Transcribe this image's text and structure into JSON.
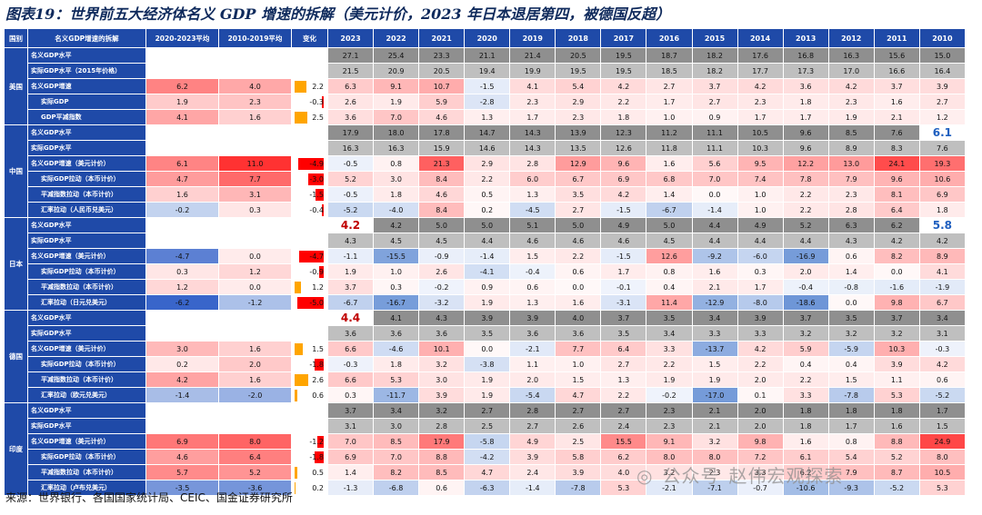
{
  "title": "图表19：世界前五大经济体名义 GDP 增速的拆解（美元计价，2023 年日本退居第四，被德国反超）",
  "source": "来源：世界银行、各国国家统计局、CEIC、国金证券研究所",
  "watermark": {
    "icon": "wechat-icon",
    "a": "公众号",
    "b": "赵伟宏观探索"
  },
  "header": {
    "country": "国别",
    "indicator": "名义GDP增速的拆解",
    "avg2020": "2020-2023平均",
    "avg2010": "2010-2019平均",
    "change": "变化",
    "years": [
      "2023",
      "2022",
      "2021",
      "2020",
      "2019",
      "2018",
      "2017",
      "2016",
      "2015",
      "2014",
      "2013",
      "2012",
      "2011",
      "2010"
    ]
  },
  "colors": {
    "red": "#ff0000",
    "orange": "#ffa500",
    "blue": "#1f4aa8",
    "lightgray": "#bfbfbf",
    "darkgray": "#8f8f8f"
  },
  "sections": [
    {
      "country": "美国",
      "rows": [
        {
          "label": "名义GDP水平",
          "avg2020": "",
          "avg2010": "",
          "change": "",
          "vals": [
            "27.1",
            "25.4",
            "23.3",
            "21.1",
            "21.4",
            "20.5",
            "19.5",
            "18.7",
            "18.2",
            "17.6",
            "16.8",
            "16.3",
            "15.6",
            "15.0"
          ]
        },
        {
          "label": "实际GDP水平（2015年价格）",
          "avg2020": "",
          "avg2010": "",
          "change": "",
          "vals": [
            "21.5",
            "20.9",
            "20.5",
            "19.4",
            "19.9",
            "19.5",
            "19.5",
            "18.5",
            "18.2",
            "17.7",
            "17.3",
            "17.0",
            "16.6",
            "16.4"
          ]
        },
        {
          "label": "名义GDP增速",
          "avg2020": "6.2",
          "avg2010": "4.0",
          "change": "2.2",
          "vals": [
            "6.3",
            "9.1",
            "10.7",
            "-1.5",
            "4.1",
            "5.4",
            "4.2",
            "2.7",
            "3.7",
            "4.2",
            "3.6",
            "4.2",
            "3.7",
            "3.9"
          ]
        },
        {
          "label": "实际GDP",
          "avg2020": "1.9",
          "avg2010": "2.3",
          "change": "-0.3",
          "vals": [
            "2.6",
            "1.9",
            "5.9",
            "-2.8",
            "2.3",
            "2.9",
            "2.2",
            "1.7",
            "2.7",
            "2.3",
            "1.8",
            "2.3",
            "1.6",
            "2.7"
          ]
        },
        {
          "label": "GDP平减指数",
          "avg2020": "4.1",
          "avg2010": "1.6",
          "change": "2.5",
          "vals": [
            "3.6",
            "7.0",
            "4.6",
            "1.3",
            "1.7",
            "2.3",
            "1.8",
            "1.0",
            "0.9",
            "1.7",
            "1.7",
            "1.9",
            "2.1",
            "1.2"
          ]
        }
      ]
    },
    {
      "country": "中国",
      "rows": [
        {
          "label": "名义GDP水平",
          "avg2020": "",
          "avg2010": "",
          "change": "",
          "vals": [
            "17.9",
            "18.0",
            "17.8",
            "14.7",
            "14.3",
            "13.9",
            "12.3",
            "11.2",
            "11.1",
            "10.5",
            "9.6",
            "8.5",
            "7.6",
            "6.1"
          ]
        },
        {
          "label": "实际GDP水平",
          "avg2020": "",
          "avg2010": "",
          "change": "",
          "vals": [
            "16.3",
            "16.3",
            "15.9",
            "14.6",
            "14.3",
            "13.5",
            "12.6",
            "11.8",
            "11.1",
            "10.3",
            "9.6",
            "8.9",
            "8.3",
            "7.6"
          ]
        },
        {
          "label": "名义GDP增速（美元计价）",
          "avg2020": "6.1",
          "avg2010": "11.0",
          "change": "-4.9",
          "vals": [
            "-0.5",
            "0.8",
            "21.3",
            "2.9",
            "2.8",
            "12.9",
            "9.6",
            "1.6",
            "5.6",
            "9.5",
            "12.2",
            "13.0",
            "24.1",
            "19.3"
          ]
        },
        {
          "label": "实际GDP拉动（本币计价）",
          "avg2020": "4.7",
          "avg2010": "7.7",
          "change": "-3.0",
          "vals": [
            "5.2",
            "3.0",
            "8.4",
            "2.2",
            "6.0",
            "6.7",
            "6.9",
            "6.8",
            "7.0",
            "7.4",
            "7.8",
            "7.9",
            "9.6",
            "10.6"
          ]
        },
        {
          "label": "平减指数拉动（本币计价）",
          "avg2020": "1.6",
          "avg2010": "3.1",
          "change": "-1.5",
          "vals": [
            "-0.5",
            "1.8",
            "4.6",
            "0.5",
            "1.3",
            "3.5",
            "4.2",
            "1.4",
            "0.0",
            "1.0",
            "2.2",
            "2.3",
            "8.1",
            "6.9"
          ]
        },
        {
          "label": "汇率拉动（人民币兑美元）",
          "avg2020": "-0.2",
          "avg2010": "0.3",
          "change": "-0.4",
          "vals": [
            "-5.2",
            "-4.0",
            "8.4",
            "0.2",
            "-4.5",
            "2.7",
            "-1.5",
            "-6.7",
            "-1.4",
            "1.0",
            "2.2",
            "2.8",
            "6.4",
            "1.8"
          ]
        }
      ]
    },
    {
      "country": "日本",
      "rows": [
        {
          "label": "名义GDP水平",
          "avg2020": "",
          "avg2010": "",
          "change": "",
          "vals": [
            "4.2",
            "4.2",
            "5.0",
            "5.0",
            "5.1",
            "5.0",
            "4.9",
            "5.0",
            "4.4",
            "4.9",
            "5.2",
            "6.3",
            "6.2",
            "5.8"
          ]
        },
        {
          "label": "实际GDP水平",
          "avg2020": "",
          "avg2010": "",
          "change": "",
          "vals": [
            "4.3",
            "4.5",
            "4.5",
            "4.4",
            "4.6",
            "4.6",
            "4.6",
            "4.5",
            "4.4",
            "4.4",
            "4.4",
            "4.3",
            "4.2",
            "4.2"
          ]
        },
        {
          "label": "名义GDP增速（美元计价）",
          "avg2020": "-4.7",
          "avg2010": "0.0",
          "change": "-4.7",
          "vals": [
            "-1.1",
            "-15.5",
            "-0.9",
            "-1.4",
            "1.5",
            "2.2",
            "-1.5",
            "12.6",
            "-9.2",
            "-6.0",
            "-16.9",
            "0.6",
            "8.2",
            "8.9"
          ]
        },
        {
          "label": "实际GDP拉动（本币计价）",
          "avg2020": "0.3",
          "avg2010": "1.2",
          "change": "-0.9",
          "vals": [
            "1.9",
            "1.0",
            "2.6",
            "-4.1",
            "-0.4",
            "0.6",
            "1.7",
            "0.8",
            "1.6",
            "0.3",
            "2.0",
            "1.4",
            "0.0",
            "4.1"
          ]
        },
        {
          "label": "平减指数拉动（本币计价）",
          "avg2020": "1.2",
          "avg2010": "0.0",
          "change": "1.2",
          "vals": [
            "3.7",
            "0.3",
            "-0.2",
            "0.9",
            "0.6",
            "0.0",
            "-0.1",
            "0.4",
            "2.1",
            "1.7",
            "-0.4",
            "-0.8",
            "-1.6",
            "-1.9"
          ]
        },
        {
          "label": "汇率拉动（日元兑美元）",
          "avg2020": "-6.2",
          "avg2010": "-1.2",
          "change": "-5.0",
          "vals": [
            "-6.7",
            "-16.7",
            "-3.2",
            "1.9",
            "1.3",
            "1.6",
            "-3.1",
            "11.4",
            "-12.9",
            "-8.0",
            "-18.6",
            "0.0",
            "9.8",
            "6.7"
          ]
        }
      ]
    },
    {
      "country": "德国",
      "rows": [
        {
          "label": "名义GDP水平",
          "avg2020": "",
          "avg2010": "",
          "change": "",
          "vals": [
            "4.4",
            "4.1",
            "4.3",
            "3.9",
            "3.9",
            "4.0",
            "3.7",
            "3.5",
            "3.4",
            "3.9",
            "3.7",
            "3.5",
            "3.7",
            "3.4"
          ]
        },
        {
          "label": "实际GDP水平",
          "avg2020": "",
          "avg2010": "",
          "change": "",
          "vals": [
            "3.6",
            "3.6",
            "3.6",
            "3.5",
            "3.6",
            "3.6",
            "3.5",
            "3.4",
            "3.3",
            "3.3",
            "3.2",
            "3.2",
            "3.2",
            "3.1"
          ]
        },
        {
          "label": "名义GDP增速（美元计价）",
          "avg2020": "3.0",
          "avg2010": "1.6",
          "change": "1.5",
          "vals": [
            "6.6",
            "-4.6",
            "10.1",
            "0.0",
            "-2.1",
            "7.7",
            "6.4",
            "3.3",
            "-13.7",
            "4.2",
            "5.9",
            "-5.9",
            "10.3",
            "-0.3"
          ]
        },
        {
          "label": "实际GDP拉动（本币计价）",
          "avg2020": "0.2",
          "avg2010": "2.0",
          "change": "-1.8",
          "vals": [
            "-0.3",
            "1.8",
            "3.2",
            "-3.8",
            "1.1",
            "1.0",
            "2.7",
            "2.2",
            "1.5",
            "2.2",
            "0.4",
            "0.4",
            "3.9",
            "4.2"
          ]
        },
        {
          "label": "平减指数拉动（本币计价）",
          "avg2020": "4.2",
          "avg2010": "1.6",
          "change": "2.6",
          "vals": [
            "6.6",
            "5.3",
            "3.0",
            "1.9",
            "2.0",
            "1.5",
            "1.3",
            "1.9",
            "1.9",
            "2.0",
            "2.2",
            "1.5",
            "1.1",
            "0.6"
          ]
        },
        {
          "label": "汇率拉动（欧元兑美元）",
          "avg2020": "-1.4",
          "avg2010": "-2.0",
          "change": "0.6",
          "vals": [
            "0.3",
            "-11.7",
            "3.9",
            "1.9",
            "-5.4",
            "4.7",
            "2.2",
            "-0.2",
            "-17.0",
            "0.1",
            "3.3",
            "-7.8",
            "5.3",
            "-5.2"
          ]
        }
      ]
    },
    {
      "country": "印度",
      "rows": [
        {
          "label": "名义GDP水平",
          "avg2020": "",
          "avg2010": "",
          "change": "",
          "vals": [
            "3.7",
            "3.4",
            "3.2",
            "2.7",
            "2.8",
            "2.7",
            "2.7",
            "2.3",
            "2.1",
            "2.0",
            "1.8",
            "1.8",
            "1.8",
            "1.7"
          ]
        },
        {
          "label": "实际GDP水平",
          "avg2020": "",
          "avg2010": "",
          "change": "",
          "vals": [
            "3.1",
            "3.0",
            "2.8",
            "2.5",
            "2.7",
            "2.6",
            "2.4",
            "2.3",
            "2.1",
            "2.0",
            "1.8",
            "1.7",
            "1.6",
            "1.5"
          ]
        },
        {
          "label": "名义GDP增速（美元计价）",
          "avg2020": "6.9",
          "avg2010": "8.0",
          "change": "-1.2",
          "vals": [
            "7.0",
            "8.5",
            "17.9",
            "-5.8",
            "4.9",
            "2.5",
            "15.5",
            "9.1",
            "3.2",
            "9.8",
            "1.6",
            "0.8",
            "8.8",
            "24.9"
          ]
        },
        {
          "label": "实际GDP拉动（本币计价）",
          "avg2020": "4.6",
          "avg2010": "6.4",
          "change": "-1.8",
          "vals": [
            "6.9",
            "7.0",
            "8.8",
            "-4.2",
            "3.9",
            "5.8",
            "6.2",
            "8.0",
            "8.0",
            "7.2",
            "6.1",
            "5.4",
            "5.2",
            "8.0"
          ]
        },
        {
          "label": "平减指数拉动（本币计价）",
          "avg2020": "5.7",
          "avg2010": "5.2",
          "change": "0.5",
          "vals": [
            "1.4",
            "8.2",
            "8.5",
            "4.7",
            "2.4",
            "3.9",
            "4.0",
            "3.2",
            "2.3",
            "3.3",
            "6.2",
            "7.9",
            "8.7",
            "10.5"
          ]
        },
        {
          "label": "汇率拉动（卢布兑美元）",
          "avg2020": "-3.5",
          "avg2010": "-3.6",
          "change": "0.2",
          "vals": [
            "-1.3",
            "-6.8",
            "0.6",
            "-6.3",
            "-1.4",
            "-7.8",
            "5.3",
            "-2.1",
            "-7.1",
            "-0.7",
            "-10.6",
            "-9.3",
            "-5.2",
            "5.3"
          ]
        }
      ]
    }
  ]
}
